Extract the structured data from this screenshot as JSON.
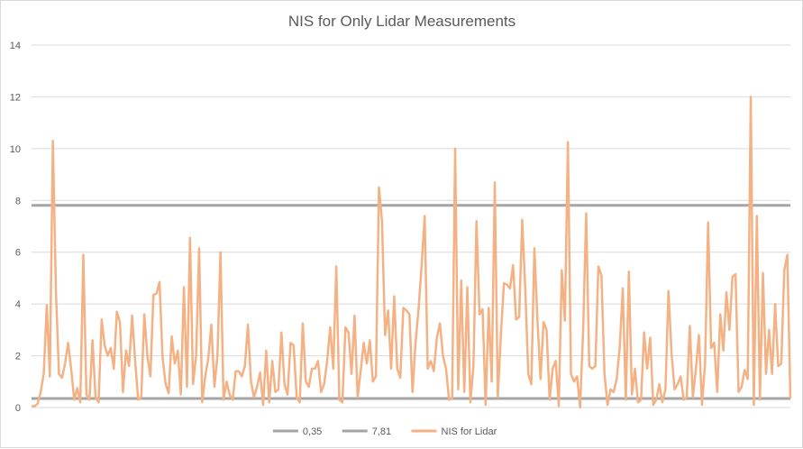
{
  "chart_data": {
    "type": "line",
    "title": "NIS for Only Lidar Measurements",
    "xlabel": "",
    "ylabel": "",
    "ylim": [
      0,
      14
    ],
    "yticks": [
      "0",
      "2",
      "4",
      "6",
      "8",
      "10",
      "12",
      "14"
    ],
    "grid": true,
    "legend_position": "bottom",
    "series": [
      {
        "name": "0,35",
        "color": "#a5a5a5",
        "constant": 0.35
      },
      {
        "name": "7,81",
        "color": "#a5a5a5",
        "constant": 7.81
      },
      {
        "name": "NIS for Lidar",
        "color": "#f4b183",
        "values": [
          0.05,
          0.05,
          0.15,
          0.6,
          1.3,
          3.95,
          1.2,
          10.3,
          4.5,
          1.3,
          1.15,
          1.7,
          2.5,
          1.5,
          0.3,
          0.75,
          0.2,
          5.9,
          0.5,
          0.3,
          2.6,
          0.4,
          0.2,
          3.4,
          2.4,
          2.0,
          2.3,
          1.5,
          3.7,
          3.3,
          0.6,
          2.2,
          1.6,
          3.55,
          1.8,
          0.3,
          0.4,
          3.6,
          2.0,
          1.2,
          4.35,
          4.4,
          4.85,
          1.9,
          0.9,
          0.55,
          2.75,
          1.7,
          2.2,
          0.5,
          4.65,
          0.8,
          6.55,
          0.9,
          2.0,
          6.15,
          0.2,
          1.2,
          1.9,
          3.2,
          0.8,
          2.0,
          6.0,
          0.3,
          1.0,
          0.5,
          0.3,
          1.4,
          1.4,
          1.2,
          1.6,
          3.2,
          1.0,
          0.4,
          0.8,
          1.35,
          0.1,
          2.2,
          0.2,
          1.8,
          0.6,
          0.7,
          2.9,
          0.9,
          0.5,
          2.5,
          2.4,
          0.4,
          0.2,
          3.25,
          1.0,
          0.8,
          1.5,
          1.5,
          1.8,
          0.6,
          0.9,
          1.8,
          3.1,
          1.5,
          5.45,
          0.3,
          0.2,
          3.1,
          2.9,
          1.3,
          3.55,
          0.4,
          1.4,
          2.5,
          1.7,
          2.6,
          1.0,
          1.2,
          8.5,
          7.2,
          2.8,
          3.75,
          1.5,
          4.3,
          1.5,
          1.15,
          3.85,
          3.75,
          3.6,
          0.6,
          2.5,
          3.8,
          5.5,
          7.4,
          1.5,
          1.8,
          1.4,
          2.7,
          3.25,
          2.0,
          1.5,
          0.3,
          0.35,
          10.0,
          0.7,
          4.9,
          0.6,
          4.65,
          0.2,
          1.6,
          7.2,
          3.6,
          3.8,
          0.1,
          3.85,
          1.0,
          8.7,
          0.4,
          2.8,
          4.8,
          4.75,
          4.6,
          5.5,
          3.4,
          3.5,
          7.25,
          4.6,
          1.3,
          0.9,
          6.15,
          3.4,
          1.1,
          3.3,
          3.0,
          0.3,
          1.5,
          1.8,
          0.05,
          5.3,
          3.35,
          10.25,
          1.3,
          1.0,
          1.2,
          0.0,
          3.0,
          7.5,
          1.6,
          1.5,
          1.6,
          5.45,
          5.1,
          1.3,
          0.1,
          0.7,
          0.6,
          1.1,
          2.3,
          4.6,
          0.3,
          5.25,
          0.5,
          1.5,
          0.2,
          0.3,
          2.9,
          1.5,
          2.7,
          0.1,
          0.3,
          0.9,
          0.2,
          0.7,
          4.5,
          2.1,
          0.7,
          0.9,
          1.2,
          0.3,
          0.4,
          3.15,
          0.4,
          1.5,
          2.8,
          0.1,
          1.7,
          7.15,
          2.3,
          2.5,
          0.6,
          3.6,
          2.2,
          4.45,
          3.0,
          5.05,
          5.15,
          0.6,
          0.8,
          1.45,
          1.1,
          12.0,
          0.1,
          7.4,
          0.3,
          5.2,
          1.3,
          3.0,
          1.3,
          4.0,
          1.6,
          1.7,
          5.3,
          5.9,
          0.35
        ]
      }
    ]
  }
}
